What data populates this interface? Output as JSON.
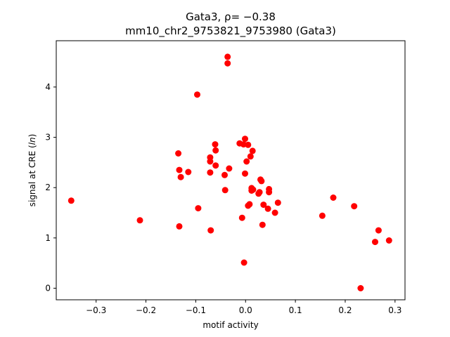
{
  "chart_data": {
    "type": "scatter",
    "title_line1": "Gata3, ρ= −0.38",
    "title_line2": "mm10_chr2_9753821_9753980 (Gata3)",
    "xlabel": "motif activity",
    "ylabel": "signal at CRE (ln)",
    "xlim": [
      -0.38,
      0.32
    ],
    "ylim": [
      -0.23,
      4.92
    ],
    "grid": false,
    "marker_color": "#ff0000",
    "x_ticks": [
      {
        "value": -0.3,
        "label": "−0.3"
      },
      {
        "value": -0.2,
        "label": "−0.2"
      },
      {
        "value": -0.1,
        "label": "−0.1"
      },
      {
        "value": 0.0,
        "label": "0.0"
      },
      {
        "value": 0.1,
        "label": "0.1"
      },
      {
        "value": 0.2,
        "label": "0.2"
      },
      {
        "value": 0.3,
        "label": "0.3"
      }
    ],
    "y_ticks": [
      {
        "value": 0,
        "label": "0"
      },
      {
        "value": 1,
        "label": "1"
      },
      {
        "value": 2,
        "label": "2"
      },
      {
        "value": 3,
        "label": "3"
      },
      {
        "value": 4,
        "label": "4"
      }
    ],
    "points": [
      {
        "x": -0.35,
        "y": 1.74
      },
      {
        "x": -0.212,
        "y": 1.35
      },
      {
        "x": -0.135,
        "y": 2.68
      },
      {
        "x": -0.133,
        "y": 2.35
      },
      {
        "x": -0.13,
        "y": 2.21
      },
      {
        "x": -0.133,
        "y": 1.23
      },
      {
        "x": -0.115,
        "y": 2.31
      },
      {
        "x": -0.097,
        "y": 3.85
      },
      {
        "x": -0.095,
        "y": 1.59
      },
      {
        "x": -0.071,
        "y": 2.6
      },
      {
        "x": -0.071,
        "y": 2.52
      },
      {
        "x": -0.071,
        "y": 2.3
      },
      {
        "x": -0.07,
        "y": 1.15
      },
      {
        "x": -0.061,
        "y": 2.86
      },
      {
        "x": -0.06,
        "y": 2.74
      },
      {
        "x": -0.06,
        "y": 2.44
      },
      {
        "x": -0.042,
        "y": 2.25
      },
      {
        "x": -0.041,
        "y": 1.95
      },
      {
        "x": -0.036,
        "y": 4.6
      },
      {
        "x": -0.036,
        "y": 4.47
      },
      {
        "x": -0.033,
        "y": 2.38
      },
      {
        "x": -0.012,
        "y": 2.88
      },
      {
        "x": -0.007,
        "y": 1.4
      },
      {
        "x": -0.004,
        "y": 2.86
      },
      {
        "x": -0.003,
        "y": 0.51
      },
      {
        "x": -0.001,
        "y": 2.97
      },
      {
        "x": -0.001,
        "y": 2.28
      },
      {
        "x": 0.002,
        "y": 2.52
      },
      {
        "x": 0.005,
        "y": 2.85
      },
      {
        "x": 0.005,
        "y": 1.64
      },
      {
        "x": 0.008,
        "y": 1.67
      },
      {
        "x": 0.01,
        "y": 2.62
      },
      {
        "x": 0.012,
        "y": 1.99
      },
      {
        "x": 0.012,
        "y": 1.94
      },
      {
        "x": 0.014,
        "y": 2.73
      },
      {
        "x": 0.015,
        "y": 1.96
      },
      {
        "x": 0.026,
        "y": 1.88
      },
      {
        "x": 0.028,
        "y": 1.91
      },
      {
        "x": 0.03,
        "y": 2.16
      },
      {
        "x": 0.032,
        "y": 2.13
      },
      {
        "x": 0.034,
        "y": 1.26
      },
      {
        "x": 0.036,
        "y": 1.66
      },
      {
        "x": 0.045,
        "y": 1.58
      },
      {
        "x": 0.047,
        "y": 1.97
      },
      {
        "x": 0.047,
        "y": 1.91
      },
      {
        "x": 0.059,
        "y": 1.5
      },
      {
        "x": 0.065,
        "y": 1.7
      },
      {
        "x": 0.154,
        "y": 1.44
      },
      {
        "x": 0.176,
        "y": 1.8
      },
      {
        "x": 0.218,
        "y": 1.63
      },
      {
        "x": 0.231,
        "y": 0.0
      },
      {
        "x": 0.26,
        "y": 0.92
      },
      {
        "x": 0.267,
        "y": 1.15
      },
      {
        "x": 0.288,
        "y": 0.95
      }
    ]
  }
}
